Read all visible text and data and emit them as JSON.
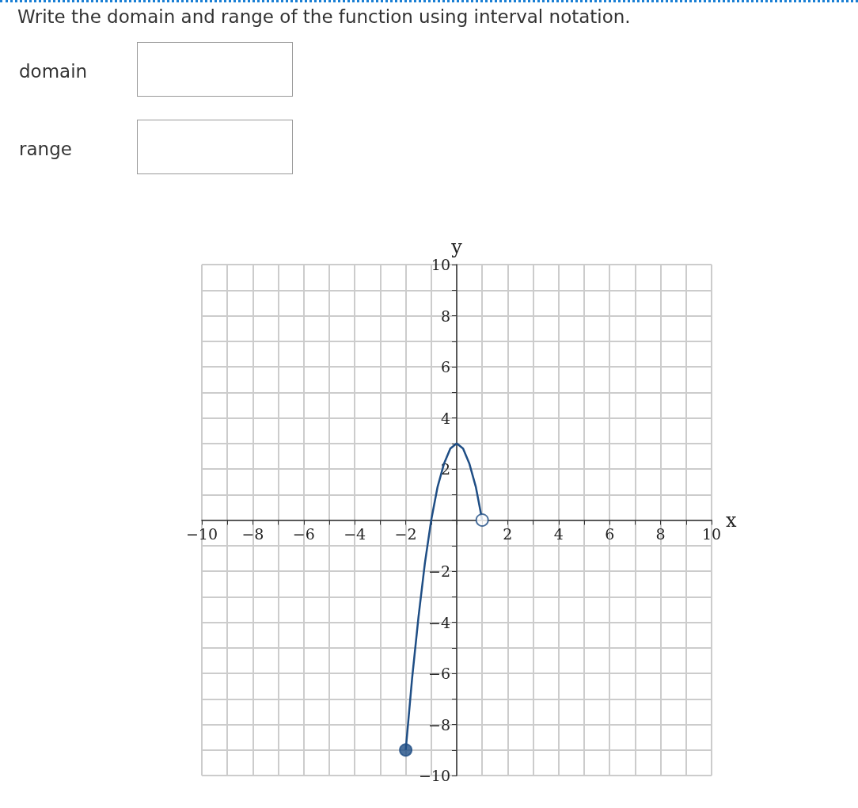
{
  "chart_data": {
    "type": "line",
    "title": "Write the domain and range of the function using interval notation.",
    "annotations": [
      "domain",
      "range"
    ],
    "xlabel": "x",
    "ylabel": "y",
    "series": [
      {
        "color": "#1f4e85",
        "x": [
          -2,
          -1.75,
          -1.5,
          -1.25,
          -1,
          -0.75,
          -0.5,
          -0.25,
          0,
          0.25,
          0.5,
          0.75,
          1
        ],
        "values": [
          -9,
          -6.2,
          -3.8,
          -1.7,
          0,
          1.3,
          2.2,
          2.8,
          3,
          2.8,
          2.2,
          1.3,
          0
        ],
        "marker": "none"
      },
      {
        "type": "scatter",
        "color": "#1f4e85",
        "x": [
          -2
        ],
        "values": [
          -9
        ],
        "marker": "circle"
      },
      {
        "type": "scatter",
        "color": "#ffffff",
        "x": [
          1
        ],
        "values": [
          0
        ],
        "marker": "circle"
      }
    ],
    "xlim": [
      -10,
      10
    ],
    "ylim": [
      -10,
      10
    ],
    "xticks": [
      {
        "value": -10,
        "label": "−10"
      },
      {
        "value": -9,
        "label": null
      },
      {
        "value": -8,
        "label": "−8"
      },
      {
        "value": -7,
        "label": null
      },
      {
        "value": -6,
        "label": "−6"
      },
      {
        "value": -5,
        "label": null
      },
      {
        "value": -4,
        "label": "−4"
      },
      {
        "value": -3,
        "label": null
      },
      {
        "value": -2,
        "label": "−2"
      },
      {
        "value": -1,
        "label": null
      },
      {
        "value": 0,
        "label": null
      },
      {
        "value": 1,
        "label": null
      },
      2,
      {
        "value": 3,
        "label": null
      },
      4,
      {
        "value": 5,
        "label": null
      },
      6,
      {
        "value": 7,
        "label": null
      },
      8,
      {
        "value": 9,
        "label": null
      },
      10
    ],
    "yticks": [
      {
        "value": -10,
        "label": "−10"
      },
      {
        "value": -9,
        "label": null
      },
      {
        "value": -8,
        "label": "−8"
      },
      {
        "value": -7,
        "label": null
      },
      {
        "value": -6,
        "label": "−6"
      },
      {
        "value": -5,
        "label": null
      },
      {
        "value": -4,
        "label": "−4"
      },
      {
        "value": -3,
        "label": null
      },
      {
        "value": -2,
        "label": "−2"
      },
      {
        "value": -1,
        "label": null
      },
      {
        "value": 0,
        "label": null
      },
      {
        "value": 1,
        "label": null
      },
      2,
      {
        "value": 3,
        "label": null
      },
      4,
      {
        "value": 5,
        "label": null
      },
      6,
      {
        "value": 7,
        "label": null
      },
      8,
      {
        "value": 9,
        "label": null
      },
      10
    ],
    "grid": true
  }
}
